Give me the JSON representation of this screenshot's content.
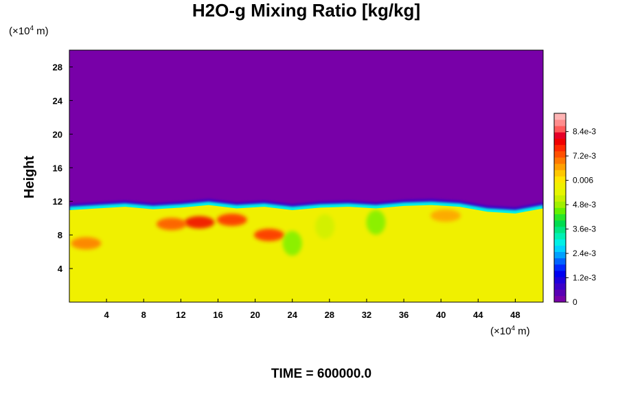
{
  "chart_data": {
    "type": "heatmap",
    "title": "H2O-g Mixing Ratio [kg/kg]",
    "ylabel": "Height",
    "xlabel": "",
    "y_unit_base": "(×10",
    "y_unit_exp": "4",
    "y_unit_suffix": " m)",
    "x_unit_base": "(×10",
    "x_unit_exp": "4",
    "x_unit_suffix": " m)",
    "time_label": "TIME = 600000.0",
    "xlim": [
      0,
      51
    ],
    "ylim": [
      0,
      30
    ],
    "x_ticks": [
      4,
      8,
      12,
      16,
      20,
      24,
      28,
      32,
      36,
      40,
      44,
      48
    ],
    "x_tick_labels": [
      "4",
      "8",
      "12",
      "16",
      "20",
      "24",
      "28",
      "32",
      "36",
      "40",
      "44",
      "48"
    ],
    "y_ticks": [
      4,
      8,
      12,
      16,
      20,
      24,
      28
    ],
    "y_tick_labels": [
      "4",
      "8",
      "12",
      "16",
      "20",
      "24",
      "28"
    ],
    "colorbar": {
      "min": 0,
      "max": 0.0093,
      "tick_values": [
        0,
        0.0012,
        0.0024,
        0.0036,
        0.0048,
        0.006,
        0.0072,
        0.0084
      ],
      "tick_labels": [
        "0",
        "1.2e-3",
        "2.4e-3",
        "3.6e-3",
        "4.8e-3",
        "0.006",
        "7.2e-3",
        "8.4e-3"
      ],
      "colors": [
        "#7800a8",
        "#5a00b4",
        "#3c00c8",
        "#1e00dc",
        "#0000f0",
        "#0028ff",
        "#0064ff",
        "#00a0ff",
        "#00d2ff",
        "#00f0e6",
        "#00f0b4",
        "#00e682",
        "#00dc50",
        "#28e628",
        "#64f000",
        "#a0f000",
        "#c8f000",
        "#e6f500",
        "#f0f000",
        "#ffe600",
        "#ffc800",
        "#ffa000",
        "#ff7800",
        "#ff5000",
        "#ff2800",
        "#f00000",
        "#e60028",
        "#ff5a5a",
        "#ff8c8c",
        "#ffb4b4"
      ]
    },
    "regions": {
      "upper_layer_value": 0,
      "lower_layer_value": 0.0058,
      "boundary_height_x": [
        0,
        3,
        6,
        9,
        12,
        15,
        18,
        21,
        24,
        27,
        30,
        33,
        36,
        39,
        42,
        45,
        48,
        51
      ],
      "boundary_height_y": [
        11.2,
        11.4,
        11.6,
        11.3,
        11.5,
        11.8,
        11.4,
        11.6,
        11.2,
        11.5,
        11.6,
        11.4,
        11.7,
        11.8,
        11.6,
        11.0,
        10.8,
        11.4
      ],
      "moist_patches": [
        {
          "x": 14,
          "y": 9.5,
          "value": 0.0078
        },
        {
          "x": 17.5,
          "y": 9.8,
          "value": 0.0076
        },
        {
          "x": 11,
          "y": 9.3,
          "value": 0.0072
        },
        {
          "x": 21.5,
          "y": 8.0,
          "value": 0.0075
        },
        {
          "x": 1.8,
          "y": 7.0,
          "value": 0.0069
        },
        {
          "x": 40.5,
          "y": 10.3,
          "value": 0.0068
        }
      ],
      "dry_patches": [
        {
          "x": 24,
          "y": 7.0,
          "value": 0.0046
        },
        {
          "x": 33,
          "y": 9.5,
          "value": 0.0044
        },
        {
          "x": 27.5,
          "y": 9.0,
          "value": 0.005
        }
      ]
    }
  }
}
